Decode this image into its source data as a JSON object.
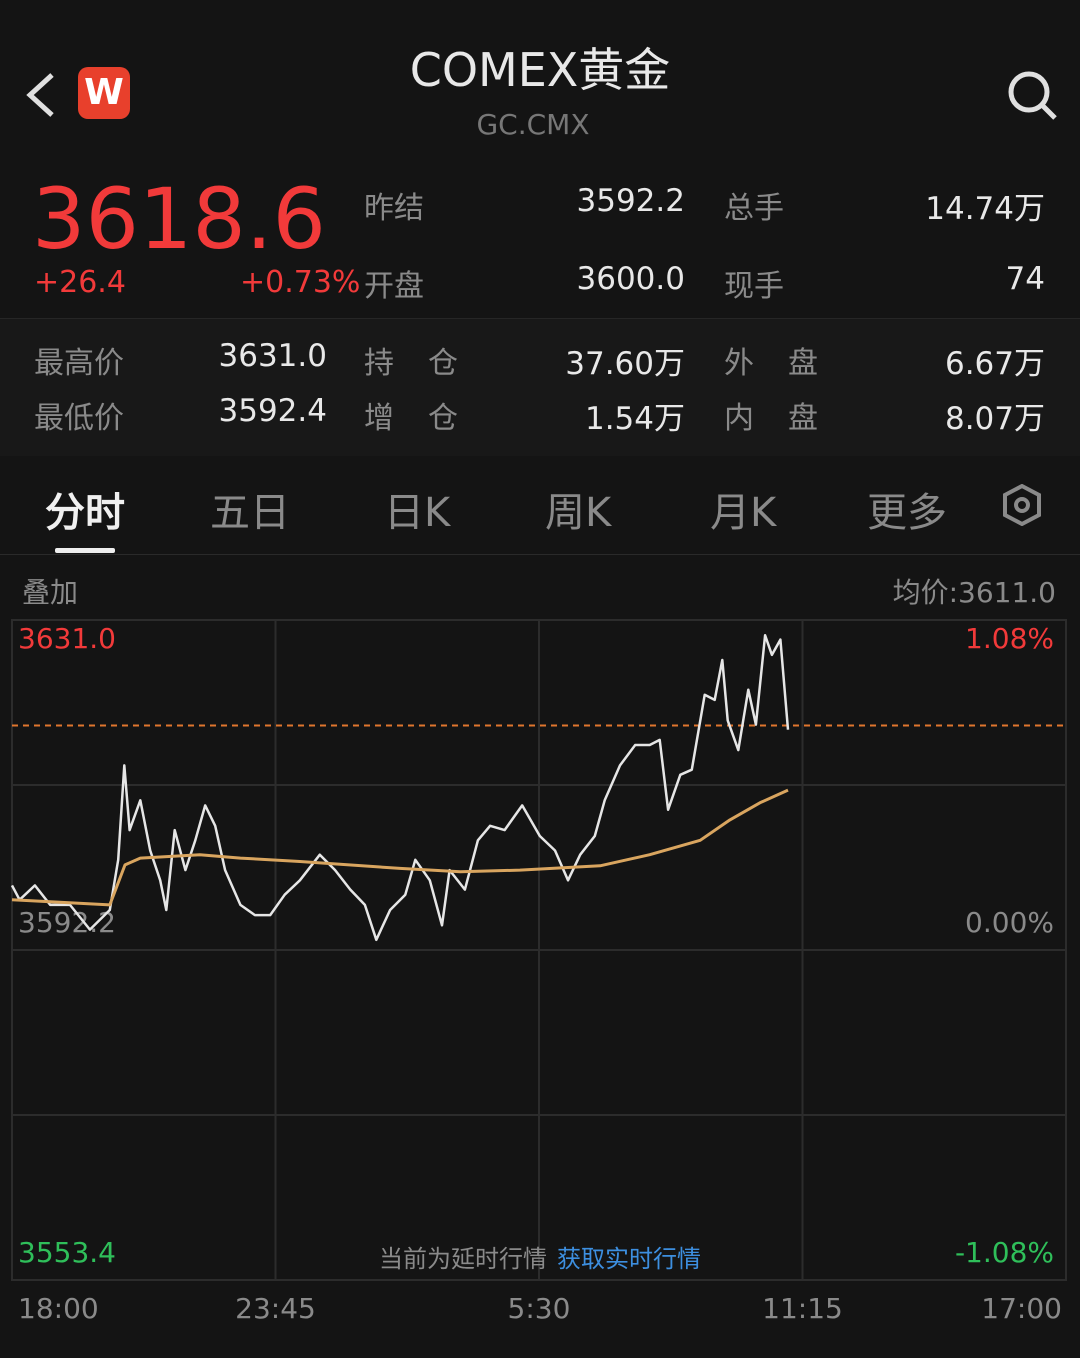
{
  "header": {
    "title": "COMEX黄金",
    "code": "GC.CMX",
    "logo": "W"
  },
  "quote": {
    "price": 3618.6,
    "change": "+26.4",
    "change_pct": "+0.73%",
    "stats": [
      [
        {
          "label": "昨结",
          "value": "3592.2"
        },
        {
          "label": "总手",
          "value": "14.74万"
        }
      ],
      [
        {
          "label": "开盘",
          "value": "3600.0"
        },
        {
          "label": "现手",
          "value": "74"
        }
      ]
    ],
    "details": [
      [
        {
          "label": "最高价",
          "value": "3631.0"
        },
        {
          "label": "持仓",
          "value": "37.60万"
        },
        {
          "label": "外盘",
          "value": "6.67万"
        }
      ],
      [
        {
          "label": "最低价",
          "value": "3592.4"
        },
        {
          "label": "增仓",
          "value": "1.54万"
        },
        {
          "label": "内盘",
          "value": "8.07万"
        }
      ]
    ]
  },
  "tabs": [
    "分时",
    "五日",
    "日K",
    "周K",
    "月K",
    "更多"
  ],
  "chart_data": {
    "type": "line",
    "overlay_label": "叠加",
    "avg_label": "均价:3611.0",
    "notice": "当前为延时行情",
    "notice_link": "获取实时行情",
    "xlim": [
      0,
      1380
    ],
    "xticks": [
      {
        "value": 0,
        "label": "18:00"
      },
      {
        "value": 345,
        "label": "23:45"
      },
      {
        "value": 690,
        "label": "5:30"
      },
      {
        "value": 1035,
        "label": "11:15"
      },
      {
        "value": 1380,
        "label": "17:00"
      }
    ],
    "ylim": [
      3553.4,
      3631.0
    ],
    "yticks": [
      {
        "value": 3631.0,
        "label": "3631.0"
      },
      {
        "value": 3592.2,
        "label": "3592.2"
      },
      {
        "value": 3553.4,
        "label": "3553.4"
      }
    ],
    "y2lim": [
      -1.08,
      1.08
    ],
    "y2ticks": [
      {
        "value": 1.08,
        "label": "1.08%"
      },
      {
        "value": 0,
        "label": "0.00%"
      },
      {
        "value": -1.08,
        "label": "-1.08%"
      }
    ],
    "series": [
      {
        "color": "#e6e6e6",
        "x": [
          0,
          10,
          30,
          50,
          76,
          102,
          128,
          139,
          147,
          154,
          168,
          181,
          194,
          202,
          213,
          227,
          240,
          253,
          266,
          279,
          299,
          318,
          338,
          357,
          377,
          403,
          423,
          443,
          462,
          477,
          495,
          515,
          528,
          547,
          563,
          573,
          593,
          610,
          626,
          645,
          668,
          691,
          711,
          728,
          744,
          763,
          776,
          796,
          816,
          835,
          848,
          859,
          875,
          890,
          907,
          920,
          930,
          937,
          951,
          964,
          974,
          986,
          995,
          1006,
          1016
        ],
        "values": [
          3599.8,
          3598.1,
          3599.8,
          3597.5,
          3597.5,
          3594.6,
          3596.9,
          3602.8,
          3613.9,
          3606.3,
          3609.8,
          3603.9,
          3600.4,
          3596.9,
          3606.3,
          3601.6,
          3605.1,
          3609.2,
          3606.8,
          3601.6,
          3597.5,
          3596.3,
          3596.3,
          3598.7,
          3600.4,
          3603.4,
          3601.6,
          3599.3,
          3597.5,
          3593.4,
          3596.9,
          3598.7,
          3602.8,
          3600.4,
          3595.1,
          3601.6,
          3599.3,
          3605.1,
          3606.8,
          3606.3,
          3609.2,
          3605.6,
          3603.9,
          3600.4,
          3603.4,
          3605.6,
          3609.8,
          3613.9,
          3616.3,
          3616.3,
          3616.9,
          3608.7,
          3612.8,
          3613.4,
          3622.2,
          3621.6,
          3626.3,
          3619.2,
          3615.7,
          3622.8,
          3618.7,
          3629.2,
          3626.9,
          3628.7,
          3618.1
        ]
      },
      {
        "color": "#d9a55f",
        "x": [
          0,
          128,
          148,
          168,
          246,
          299,
          377,
          508,
          587,
          665,
          770,
          835,
          901,
          940,
          979,
          1016
        ],
        "values": [
          3598.1,
          3597.5,
          3602.2,
          3603.0,
          3603.4,
          3603.0,
          3602.6,
          3601.8,
          3601.4,
          3601.6,
          3602.1,
          3603.4,
          3605.1,
          3607.5,
          3609.5,
          3611.0
        ]
      }
    ]
  }
}
